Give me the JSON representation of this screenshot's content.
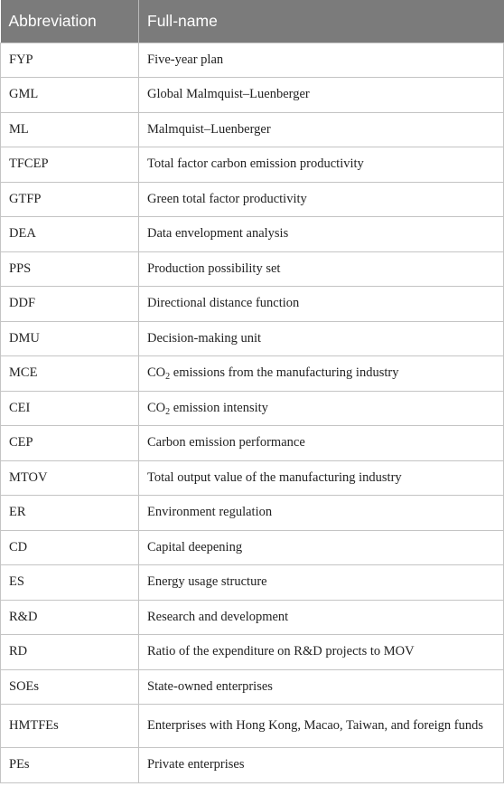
{
  "table": {
    "headers": [
      "Abbreviation",
      "Full-name"
    ],
    "rows": [
      {
        "abbr": "FYP",
        "full": "Five-year plan"
      },
      {
        "abbr": "GML",
        "full": "Global Malmquist–Luenberger"
      },
      {
        "abbr": "ML",
        "full": "Malmquist–Luenberger"
      },
      {
        "abbr": "TFCEP",
        "full": "Total factor carbon emission productivity"
      },
      {
        "abbr": "GTFP",
        "full": "Green total factor productivity"
      },
      {
        "abbr": "DEA",
        "full": "Data envelopment analysis"
      },
      {
        "abbr": "PPS",
        "full": "Production possibility set"
      },
      {
        "abbr": "DDF",
        "full": "Directional distance function"
      },
      {
        "abbr": "DMU",
        "full": "Decision-making unit"
      },
      {
        "abbr": "MCE",
        "full_pre": "CO",
        "full_sub": "2",
        "full_post": " emissions from the manufacturing industry"
      },
      {
        "abbr": "CEI",
        "full_pre": "CO",
        "full_sub": "2",
        "full_post": " emission intensity"
      },
      {
        "abbr": "CEP",
        "full": "Carbon emission performance"
      },
      {
        "abbr": "MTOV",
        "full": "Total output value of the manufacturing industry"
      },
      {
        "abbr": "ER",
        "full": "Environment regulation"
      },
      {
        "abbr": "CD",
        "full": "Capital deepening"
      },
      {
        "abbr": "ES",
        "full": "Energy usage structure"
      },
      {
        "abbr": "R&D",
        "full": "Research and development"
      },
      {
        "abbr": "RD",
        "full": "Ratio of the expenditure on R&D projects to MOV"
      },
      {
        "abbr": "SOEs",
        "full": "State-owned enterprises"
      },
      {
        "abbr": "HMTFEs",
        "full": "Enterprises with Hong Kong, Macao, Taiwan, and foreign funds"
      },
      {
        "abbr": "PEs",
        "full": "Private enterprises"
      }
    ]
  },
  "colors": {
    "header_bg": "#7b7b7b",
    "header_text": "#ffffff",
    "grid": "#c4c4c4"
  }
}
